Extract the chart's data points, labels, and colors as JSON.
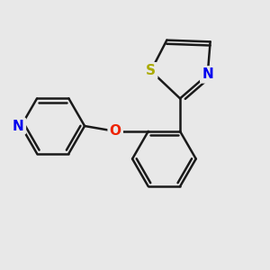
{
  "background_color": "#e8e8e8",
  "bond_color": "#1a1a1a",
  "bond_width": 1.8,
  "N_color": "#0000ee",
  "O_color": "#ee2200",
  "S_color": "#aaaa00",
  "font_size": 11,
  "figsize": [
    3.0,
    3.0
  ],
  "dpi": 100,
  "xlim": [
    -0.2,
    4.8
  ],
  "ylim": [
    -0.5,
    4.2
  ]
}
